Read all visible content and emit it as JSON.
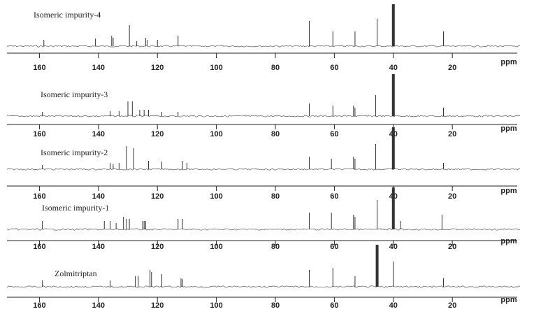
{
  "chart_data": [
    {
      "type": "stick",
      "title": "Isomeric impurity-4",
      "xlabel": "ppm",
      "xlim": [
        171,
        -2
      ],
      "ylim": [
        0,
        100
      ],
      "xticks": [
        160,
        140,
        120,
        100,
        80,
        60,
        40,
        20
      ],
      "color": "#333333",
      "x": [
        158.5,
        141,
        135.5,
        135,
        129.5,
        127,
        124,
        123.5,
        120,
        113,
        68.5,
        60.5,
        53,
        45.5,
        40,
        23
      ],
      "values": [
        15,
        18,
        25,
        20,
        50,
        12,
        20,
        15,
        15,
        25,
        60,
        35,
        35,
        65,
        100,
        35
      ]
    },
    {
      "type": "stick",
      "title": "Isomeric impurity-3",
      "xlabel": "ppm",
      "xlim": [
        171,
        -2
      ],
      "ylim": [
        0,
        100
      ],
      "xticks": [
        160,
        140,
        120,
        100,
        80,
        60,
        40,
        20
      ],
      "color": "#333333",
      "x": [
        159,
        136,
        133,
        130,
        128.5,
        126,
        124.5,
        123,
        118.5,
        113,
        68.5,
        60.5,
        53.5,
        53,
        46,
        40,
        23
      ],
      "values": [
        10,
        12,
        12,
        35,
        35,
        15,
        15,
        15,
        10,
        10,
        30,
        25,
        25,
        20,
        50,
        100,
        20
      ]
    },
    {
      "type": "stick",
      "title": "Isomeric impurity-2",
      "xlabel": "ppm",
      "xlim": [
        171,
        -2
      ],
      "ylim": [
        0,
        100
      ],
      "xticks": [
        160,
        140,
        120,
        100,
        80,
        60,
        40,
        20
      ],
      "color": "#333333",
      "x": [
        159,
        136,
        135,
        133,
        130.5,
        128,
        123,
        118.5,
        111.5,
        110,
        68.5,
        61,
        53.5,
        53,
        46,
        40,
        23
      ],
      "values": [
        10,
        15,
        12,
        15,
        55,
        50,
        20,
        18,
        20,
        15,
        30,
        25,
        30,
        25,
        60,
        100,
        15
      ]
    },
    {
      "type": "stick",
      "title": "Isomeric impurity-1",
      "xlabel": "ppm",
      "xlim": [
        171,
        -2
      ],
      "ylim": [
        0,
        100
      ],
      "xticks": [
        160,
        140,
        120,
        100,
        80,
        60,
        40,
        20
      ],
      "color": "#333333",
      "x": [
        159,
        138,
        136,
        134,
        131.5,
        130.5,
        129.5,
        125,
        124.5,
        124,
        113,
        111.5,
        68.5,
        61,
        53.5,
        53,
        45.5,
        40,
        37.5,
        23.5
      ],
      "values": [
        20,
        20,
        20,
        15,
        30,
        25,
        25,
        20,
        20,
        20,
        25,
        25,
        40,
        40,
        35,
        30,
        70,
        100,
        20,
        35
      ]
    },
    {
      "type": "stick",
      "title": "Zolmitriptan",
      "xlabel": "ppm",
      "xlim": [
        171,
        -2
      ],
      "ylim": [
        0,
        100
      ],
      "xticks": [
        160,
        140,
        120,
        100,
        80,
        60,
        40,
        20
      ],
      "color": "#333333",
      "x": [
        159,
        136,
        127.5,
        126.5,
        122.5,
        122,
        118.5,
        112,
        111.5,
        68.5,
        60.5,
        53,
        45.5,
        40,
        23
      ],
      "values": [
        15,
        15,
        25,
        25,
        40,
        35,
        30,
        20,
        18,
        40,
        45,
        25,
        100,
        60,
        20
      ]
    }
  ]
}
